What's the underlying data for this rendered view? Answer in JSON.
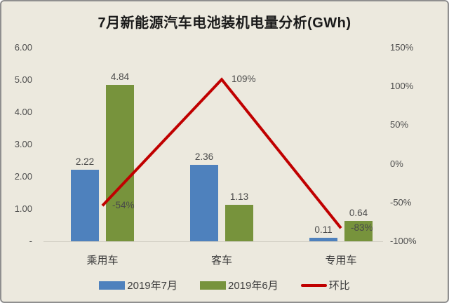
{
  "title": "7月新能源汽车电池装机电量分析(GWh)",
  "legend": {
    "july": "2019年7月",
    "june": "2019年6月",
    "ratio": "环比"
  },
  "colors": {
    "july_bar": "#4e81bd",
    "june_bar": "#77933c",
    "ratio_line": "#c00000",
    "background": "#ece9de",
    "border": "#8f8f8f"
  },
  "chart_data": {
    "type": "bar",
    "title": "7月新能源汽车电池装机电量分析(GWh)",
    "categories": [
      "乘用车",
      "客车",
      "专用车"
    ],
    "series": [
      {
        "name": "2019年7月",
        "type": "bar",
        "axis": "left",
        "color": "#4e81bd",
        "values": [
          2.22,
          2.36,
          0.11
        ],
        "labels": [
          "2.22",
          "2.36",
          "0.11"
        ]
      },
      {
        "name": "2019年6月",
        "type": "bar",
        "axis": "left",
        "color": "#77933c",
        "values": [
          4.84,
          1.13,
          0.64
        ],
        "labels": [
          "4.84",
          "1.13",
          "0.64"
        ]
      },
      {
        "name": "环比",
        "type": "line",
        "axis": "right",
        "color": "#c00000",
        "values": [
          -0.54,
          1.09,
          -0.83
        ],
        "labels": [
          "-54%",
          "109%",
          "-83%"
        ]
      }
    ],
    "left_axis": {
      "ticks": [
        "6.00",
        "5.00",
        "4.00",
        "3.00",
        "2.00",
        "1.00",
        "-"
      ],
      "min": 0,
      "max": 6
    },
    "right_axis": {
      "ticks": [
        "150%",
        "100%",
        "50%",
        "0%",
        "-50%",
        "-100%"
      ],
      "min": -1.0,
      "max": 1.5
    },
    "legend_position": "bottom",
    "grid": false
  }
}
